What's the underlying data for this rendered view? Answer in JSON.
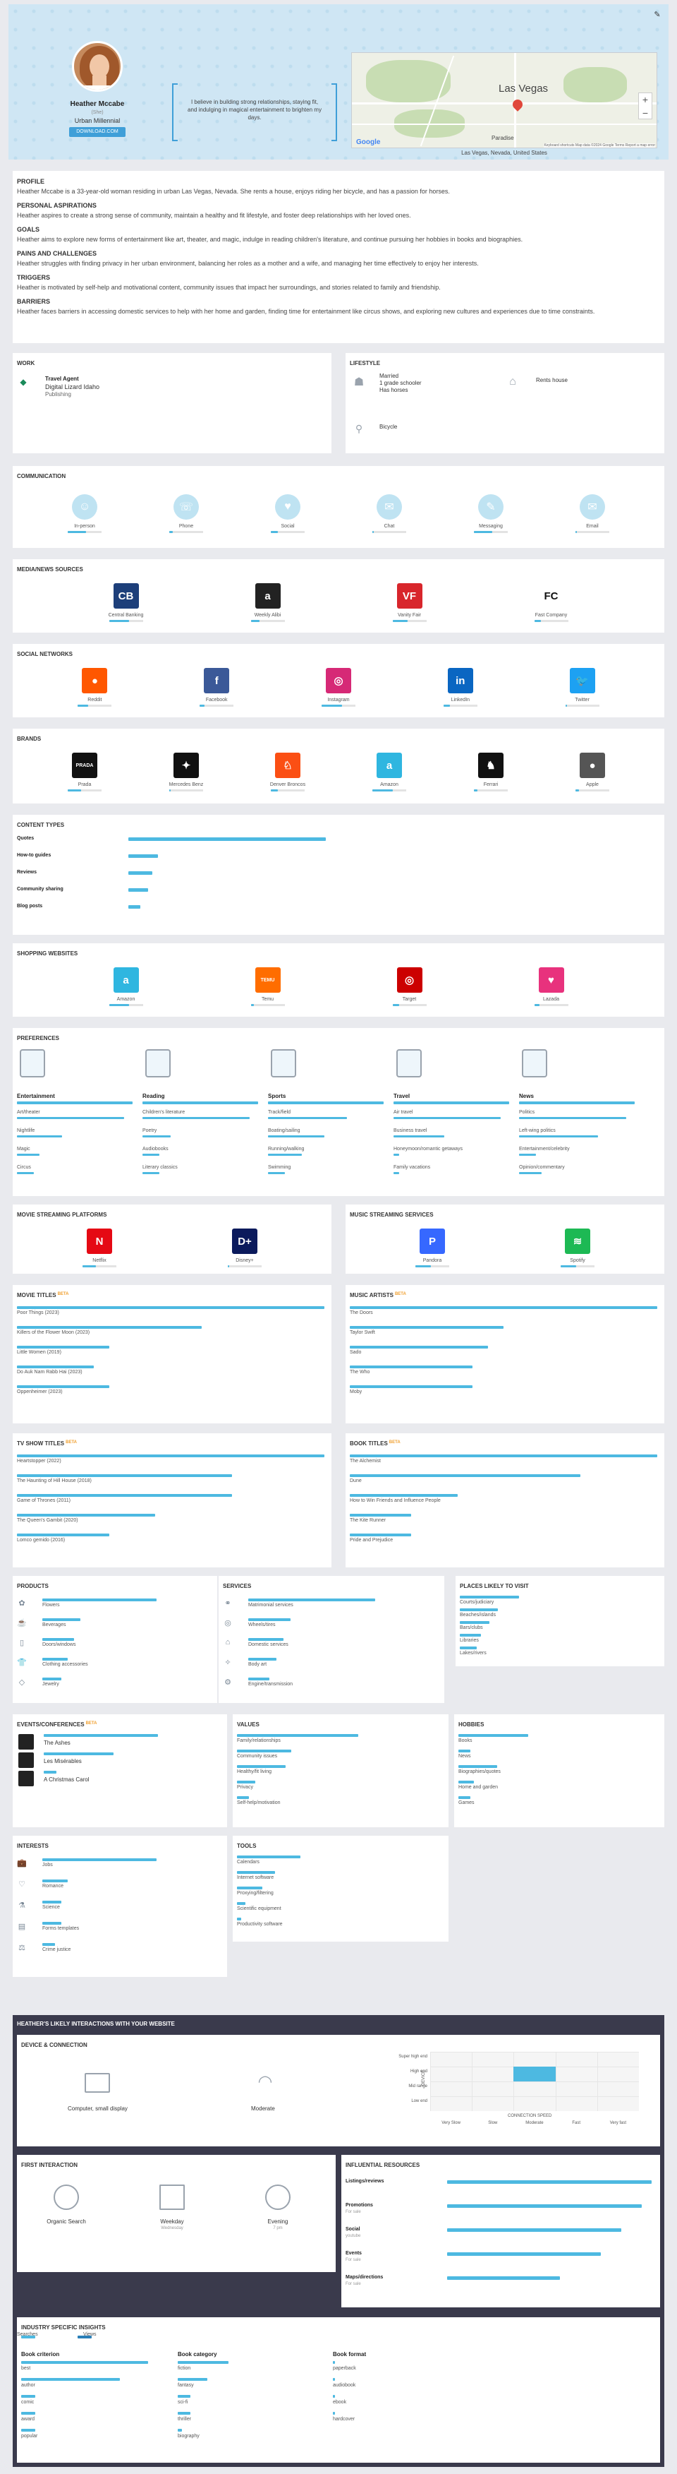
{
  "hero": {
    "name": "Heather Mccabe",
    "pronoun": "(She)",
    "persona": "Urban Millennial",
    "button": "DOWNLOAD.COM",
    "quote": "I believe in building strong relationships, staying fit, and indulging in magical entertainment to brighten my days.",
    "map_city": "Las Vegas",
    "map_suburb": "Paradise",
    "map_attribution": "Keyboard shortcuts   Map data ©2024 Google   Terms   Report a map error",
    "location": "Las Vegas, Nevada, United States",
    "google": "Google",
    "zoom_in": "+",
    "zoom_out": "−",
    "edit_icon": "✎"
  },
  "profile": {
    "title": "PROFILE",
    "text": "Heather Mccabe is a 33-year-old woman residing in urban Las Vegas, Nevada. She rents a house, enjoys riding her bicycle, and has a passion for horses.",
    "aspirations_title": "PERSONAL ASPIRATIONS",
    "aspirations": "Heather aspires to create a strong sense of community, maintain a healthy and fit lifestyle, and foster deep relationships with her loved ones.",
    "goals_title": "GOALS",
    "goals": "Heather aims to explore new forms of entertainment like art, theater, and magic, indulge in reading children's literature, and continue pursuing her hobbies in books and biographies.",
    "pains_title": "PAINS AND CHALLENGES",
    "pains": "Heather struggles with finding privacy in her urban environment, balancing her roles as a mother and a wife, and managing her time effectively to enjoy her interests.",
    "triggers_title": "TRIGGERS",
    "triggers": "Heather is motivated by self-help and motivational content, community issues that impact her surroundings, and stories related to family and friendship.",
    "barriers_title": "BARRIERS",
    "barriers": "Heather faces barriers in accessing domestic services to help with her home and garden, finding time for entertainment like circus shows, and exploring new cultures and experiences due to time constraints."
  },
  "work": {
    "title": "WORK",
    "job": "Travel Agent",
    "company": "Digital Lizard Idaho",
    "industry": "Publishing"
  },
  "lifestyle": {
    "title": "LIFESTYLE",
    "family": [
      "Married",
      "1 grade schooler",
      "Has horses"
    ],
    "home": "Rents house",
    "transport": "Bicycle"
  },
  "communication": {
    "title": "COMMUNICATION",
    "items": [
      {
        "label": "In-person",
        "icon": "person-icon",
        "glyph": "☺",
        "level": 0.55
      },
      {
        "label": "Phone",
        "icon": "phone-icon",
        "glyph": "☏",
        "level": 0.1
      },
      {
        "label": "Social",
        "icon": "thumbs-up-icon",
        "glyph": "♥",
        "level": 0.2
      },
      {
        "label": "Chat",
        "icon": "chat-icon",
        "glyph": "✉",
        "level": 0.05
      },
      {
        "label": "Messaging",
        "icon": "message-icon",
        "glyph": "✎",
        "level": 0.55
      },
      {
        "label": "Email",
        "icon": "email-icon",
        "glyph": "✉",
        "level": 0
      }
    ]
  },
  "media_news": {
    "title": "MEDIA/NEWS SOURCES",
    "items": [
      {
        "label": "Central Banking",
        "icon": "central-banking-logo",
        "color": "#1d3f7a",
        "glyph": "CB",
        "level": 0.6
      },
      {
        "label": "Weekly Alibi",
        "icon": "weekly-alibi-logo",
        "color": "#222222",
        "glyph": "a",
        "level": 0.25
      },
      {
        "label": "Vanity Fair",
        "icon": "vanity-fair-logo",
        "color": "#d8262c",
        "glyph": "VF",
        "level": 0.45
      },
      {
        "label": "Fast Company",
        "icon": "fast-company-logo",
        "color": "#ffffff",
        "glyph": "FC",
        "level": 0.2
      }
    ]
  },
  "social": {
    "title": "SOCIAL NETWORKS",
    "items": [
      {
        "label": "Reddit",
        "icon": "reddit-icon",
        "color": "#ff5700",
        "glyph": "●",
        "level": 0.3
      },
      {
        "label": "Facebook",
        "icon": "facebook-icon",
        "color": "#3b5998",
        "glyph": "f",
        "level": 0.15
      },
      {
        "label": "Instagram",
        "icon": "instagram-icon",
        "color": "#d62976",
        "glyph": "◎",
        "level": 0.6
      },
      {
        "label": "LinkedIn",
        "icon": "linkedin-icon",
        "color": "#0a66c2",
        "glyph": "in",
        "level": 0.2
      },
      {
        "label": "Twitter",
        "icon": "twitter-icon",
        "color": "#1da1f2",
        "glyph": "🐦",
        "level": 0
      }
    ]
  },
  "brands": {
    "title": "BRANDS",
    "items": [
      {
        "label": "Prada",
        "icon": "prada-logo",
        "color": "#111111",
        "glyph": "PRADA",
        "level": 0.4
      },
      {
        "label": "Mercedes Benz",
        "icon": "mercedes-logo",
        "color": "#111111",
        "glyph": "✦",
        "level": 0.05
      },
      {
        "label": "Denver Broncos",
        "icon": "broncos-logo",
        "color": "#fb4f14",
        "glyph": "♘",
        "level": 0.2
      },
      {
        "label": "Amazon",
        "icon": "amazon-logo",
        "color": "#2fb6e0",
        "glyph": "a",
        "level": 0.6
      },
      {
        "label": "Ferrari",
        "icon": "ferrari-logo",
        "color": "#111111",
        "glyph": "♞",
        "level": 0.1
      },
      {
        "label": "Apple",
        "icon": "apple-logo",
        "color": "#555555",
        "glyph": "●",
        "level": 0.1
      }
    ]
  },
  "content_types": {
    "title": "CONTENT TYPES",
    "items": [
      {
        "label": "Quotes",
        "level": 1.0
      },
      {
        "label": "How-to guides",
        "level": 0.15
      },
      {
        "label": "Reviews",
        "level": 0.12
      },
      {
        "label": "Community sharing",
        "level": 0.1
      },
      {
        "label": "Blog posts",
        "level": 0.06
      }
    ]
  },
  "shopping": {
    "title": "SHOPPING WEBSITES",
    "items": [
      {
        "label": "Amazon",
        "icon": "amazon-logo",
        "color": "#2fb6e0",
        "glyph": "a",
        "level": 0.6
      },
      {
        "label": "Temu",
        "icon": "temu-logo",
        "color": "#ff6d00",
        "glyph": "TEMU",
        "level": 0.1
      },
      {
        "label": "Target",
        "icon": "target-logo",
        "color": "#cc0000",
        "glyph": "◎",
        "level": 0.2
      },
      {
        "label": "Lazada",
        "icon": "lazada-logo",
        "color": "#e8327d",
        "glyph": "♥",
        "level": 0.15
      }
    ]
  },
  "preferences": {
    "title": "PREFERENCES",
    "columns": [
      {
        "title": "Entertainment",
        "icon": "entertainment-icon",
        "items": [
          {
            "label": "Art/theater",
            "level": 0.95
          },
          {
            "label": "Nightlife",
            "level": 0.4
          },
          {
            "label": "Magic",
            "level": 0.2
          },
          {
            "label": "Circus",
            "level": 0.15
          }
        ]
      },
      {
        "title": "Reading",
        "icon": "reading-icon",
        "items": [
          {
            "label": "Children's literature",
            "level": 0.95
          },
          {
            "label": "Poetry",
            "level": 0.25
          },
          {
            "label": "Audiobooks",
            "level": 0.15
          },
          {
            "label": "Literary classics",
            "level": 0.15
          }
        ]
      },
      {
        "title": "Sports",
        "icon": "sports-icon",
        "items": [
          {
            "label": "Track/field",
            "level": 0.7
          },
          {
            "label": "Boating/sailing",
            "level": 0.5
          },
          {
            "label": "Running/walking",
            "level": 0.3
          },
          {
            "label": "Swimming",
            "level": 0.15
          }
        ]
      },
      {
        "title": "Travel",
        "icon": "travel-icon",
        "items": [
          {
            "label": "Air travel",
            "level": 0.95
          },
          {
            "label": "Business travel",
            "level": 0.45
          },
          {
            "label": "Honeymoon/romantic getaways",
            "level": 0.05
          },
          {
            "label": "Family vacations",
            "level": 0.05
          }
        ]
      },
      {
        "title": "News",
        "icon": "news-icon",
        "items": [
          {
            "label": "Politics",
            "level": 0.95
          },
          {
            "label": "Left-wing politics",
            "level": 0.7
          },
          {
            "label": "Entertainment/celebrity",
            "level": 0.15
          },
          {
            "label": "Opinion/commentary",
            "level": 0.2
          }
        ]
      }
    ]
  },
  "movie_streaming": {
    "title": "MOVIE STREAMING PLATFORMS",
    "items": [
      {
        "label": "Netflix",
        "icon": "netflix-logo",
        "color": "#e50914",
        "glyph": "N",
        "level": 0.4
      },
      {
        "label": "Disney+",
        "icon": "disney-plus-logo",
        "color": "#0b1a5c",
        "glyph": "D+",
        "level": 0.05
      }
    ]
  },
  "music_streaming": {
    "title": "MUSIC STREAMING SERVICES",
    "items": [
      {
        "label": "Pandora",
        "icon": "pandora-logo",
        "color": "#3668ff",
        "glyph": "P",
        "level": 0.45
      },
      {
        "label": "Spotify",
        "icon": "spotify-logo",
        "color": "#1db954",
        "glyph": "≋",
        "level": 0.45
      }
    ]
  },
  "movie_titles": {
    "title": "MOVIE TITLES",
    "beta": "BETA",
    "items": [
      {
        "label": "Poor Things (2023)",
        "level": 1.0
      },
      {
        "label": "Killers of the Flower Moon (2023)",
        "level": 0.6
      },
      {
        "label": "Little Women (2019)",
        "level": 0.3
      },
      {
        "label": "Do Auk Nam Rabb Hai (2023)",
        "level": 0.25
      },
      {
        "label": "Oppenheimer (2023)",
        "level": 0.3
      }
    ]
  },
  "music_artists": {
    "title": "MUSIC ARTISTS",
    "beta": "BETA",
    "items": [
      {
        "label": "The Doors",
        "level": 1.0
      },
      {
        "label": "Taylor Swift",
        "level": 0.5
      },
      {
        "label": "Sado",
        "level": 0.45
      },
      {
        "label": "The Who",
        "level": 0.4
      },
      {
        "label": "Moby",
        "level": 0.4
      }
    ]
  },
  "tv_titles": {
    "title": "TV SHOW TITLES",
    "beta": "BETA",
    "items": [
      {
        "label": "Heartstopper (2022)",
        "level": 1.0
      },
      {
        "label": "The Haunting of Hill House (2018)",
        "level": 0.7
      },
      {
        "label": "Game of Thrones (2011)",
        "level": 0.7
      },
      {
        "label": "The Queen's Gambit (2020)",
        "level": 0.45
      },
      {
        "label": "Lomco gemido (2016)",
        "level": 0.3
      }
    ]
  },
  "book_titles": {
    "title": "BOOK TITLES",
    "beta": "BETA",
    "items": [
      {
        "label": "The Alchemist",
        "level": 1.0
      },
      {
        "label": "Dune",
        "level": 0.75
      },
      {
        "label": "How to Win Friends and Influence People",
        "level": 0.35
      },
      {
        "label": "The Kite Runner",
        "level": 0.2
      },
      {
        "label": "Pride and Prejudice",
        "level": 0.2
      }
    ]
  },
  "products": {
    "title": "PRODUCTS",
    "items": [
      {
        "label": "Flowers",
        "icon": "flower-icon",
        "glyph": "✿",
        "level": 0.9
      },
      {
        "label": "Beverages",
        "icon": "beverage-icon",
        "glyph": "☕",
        "level": 0.3
      },
      {
        "label": "Doors/windows",
        "icon": "door-icon",
        "glyph": "▯",
        "level": 0.25
      },
      {
        "label": "Clothing accessories",
        "icon": "clothing-icon",
        "glyph": "👕",
        "level": 0.2
      },
      {
        "label": "Jewelry",
        "icon": "jewelry-icon",
        "glyph": "◇",
        "level": 0.15
      }
    ]
  },
  "services": {
    "title": "SERVICES",
    "items": [
      {
        "label": "Matrimonial services",
        "icon": "rings-icon",
        "glyph": "⚭",
        "level": 0.9
      },
      {
        "label": "Wheels/tires",
        "icon": "wheel-icon",
        "glyph": "◎",
        "level": 0.3
      },
      {
        "label": "Domestic services",
        "icon": "domestic-icon",
        "glyph": "⌂",
        "level": 0.25
      },
      {
        "label": "Body art",
        "icon": "body-art-icon",
        "glyph": "✧",
        "level": 0.2
      },
      {
        "label": "Engine/transmission",
        "icon": "engine-icon",
        "glyph": "⚙",
        "level": 0.15
      }
    ]
  },
  "places": {
    "title": "PLACES LIKELY TO VISIT",
    "items": [
      {
        "label": "Courts/judiciary",
        "level": 0.7
      },
      {
        "label": "Beaches/islands",
        "level": 0.45
      },
      {
        "label": "Bars/clubs",
        "level": 0.35
      },
      {
        "label": "Libraries",
        "level": 0.25
      },
      {
        "label": "Lakes/rivers",
        "level": 0.2
      }
    ]
  },
  "events": {
    "title": "EVENTS/CONFERENCES",
    "beta": "BETA",
    "items": [
      {
        "label": "The Ashes",
        "icon": "event-icon",
        "level": 0.9
      },
      {
        "label": "Les Misérables",
        "icon": "event-icon",
        "level": 0.55
      },
      {
        "label": "A Christmas Carol",
        "icon": "event-icon",
        "level": 0.1
      }
    ]
  },
  "values": {
    "title": "VALUES",
    "items": [
      {
        "label": "Family/relationships",
        "level": 1.0
      },
      {
        "label": "Community issues",
        "level": 0.45
      },
      {
        "label": "Healthy/fit living",
        "level": 0.4
      },
      {
        "label": "Privacy",
        "level": 0.15
      },
      {
        "label": "Self-help/motivation",
        "level": 0.1
      }
    ]
  },
  "hobbies": {
    "title": "HOBBIES",
    "items": [
      {
        "label": "Books",
        "level": 0.9
      },
      {
        "label": "News",
        "level": 0.15
      },
      {
        "label": "Biographies/quotes",
        "level": 0.5
      },
      {
        "label": "Home and garden",
        "level": 0.2
      },
      {
        "label": "Games",
        "level": 0.15
      }
    ]
  },
  "interests": {
    "title": "INTERESTS",
    "items": [
      {
        "label": "Jobs",
        "icon": "briefcase-icon",
        "glyph": "💼",
        "level": 0.9
      },
      {
        "label": "Romance",
        "icon": "heart-icon",
        "glyph": "♡",
        "level": 0.2
      },
      {
        "label": "Science",
        "icon": "science-icon",
        "glyph": "⚗",
        "level": 0.15
      },
      {
        "label": "Forms templates",
        "icon": "forms-icon",
        "glyph": "▤",
        "level": 0.15
      },
      {
        "label": "Crime justice",
        "icon": "justice-icon",
        "glyph": "⚖",
        "level": 0.1
      }
    ]
  },
  "tools": {
    "title": "TOOLS",
    "items": [
      {
        "label": "Calendars",
        "level": 0.75
      },
      {
        "label": "Internet software",
        "level": 0.45
      },
      {
        "label": "Proxying/filtering",
        "level": 0.3
      },
      {
        "label": "Scientific equipment",
        "level": 0.1
      },
      {
        "label": "Productivity software",
        "level": 0.05
      }
    ]
  },
  "interactions": {
    "title": "HEATHER'S LIKELY INTERACTIONS WITH YOUR WEBSITE",
    "device_title": "DEVICE & CONNECTION",
    "device_label": "Computer, small display",
    "connection_label": "Moderate",
    "chart_y_axis": "DEVICE",
    "chart_x_axis": "CONNECTION SPEED",
    "chart_y_labels": [
      "Super high end",
      "High end",
      "Mid range",
      "Low end"
    ],
    "chart_x_labels": [
      "Very Slow",
      "Slow",
      "Moderate",
      "Fast",
      "Very fast"
    ],
    "first_title": "FIRST INTERACTION",
    "first_items": [
      {
        "label": "Organic Search",
        "sub": "",
        "icon": "search-icon"
      },
      {
        "label": "Weekday",
        "sub": "Wednesday",
        "icon": "calendar-icon"
      },
      {
        "label": "Evening",
        "sub": "7 pm",
        "icon": "clock-icon"
      }
    ],
    "resources_title": "INFLUENTIAL RESOURCES",
    "resources": [
      {
        "label": "Listings/reviews",
        "sub": "",
        "level": 1.0
      },
      {
        "label": "Promotions",
        "sub": "For sale",
        "level": 0.95
      },
      {
        "label": "Social",
        "sub": "youtube",
        "level": 0.85
      },
      {
        "label": "Events",
        "sub": "For sale",
        "level": 0.75
      },
      {
        "label": "Maps/directions",
        "sub": "For sale",
        "level": 0.55
      }
    ],
    "industry_title": "INDUSTRY SPECIFIC INSIGHTS",
    "legend_searches": "Searches",
    "legend_views": "Views",
    "criterion_title": "Book criterion",
    "criterion": [
      {
        "label": "best",
        "level": 0.9
      },
      {
        "label": "author",
        "level": 0.7
      },
      {
        "label": "comic",
        "level": 0.1
      },
      {
        "label": "award",
        "level": 0.1
      },
      {
        "label": "popular",
        "level": 0.1
      }
    ],
    "category_title": "Book category",
    "category": [
      {
        "label": "fiction",
        "level": 0.6
      },
      {
        "label": "fantasy",
        "level": 0.35
      },
      {
        "label": "sci-fi",
        "level": 0.15
      },
      {
        "label": "thriller",
        "level": 0.15
      },
      {
        "label": "biography",
        "level": 0.05
      }
    ],
    "format_title": "Book format",
    "format": [
      {
        "label": "paperback",
        "level": 0.05
      },
      {
        "label": "audiobook",
        "level": 0.05
      },
      {
        "label": "ebook",
        "level": 0.05
      },
      {
        "label": "hardcover",
        "level": 0.05
      }
    ]
  },
  "colors": {
    "accent": "#4db9e1",
    "hero_bg": "#cfe6f4",
    "dark_band": "#3a3a4c",
    "beta": "#f0a030"
  }
}
